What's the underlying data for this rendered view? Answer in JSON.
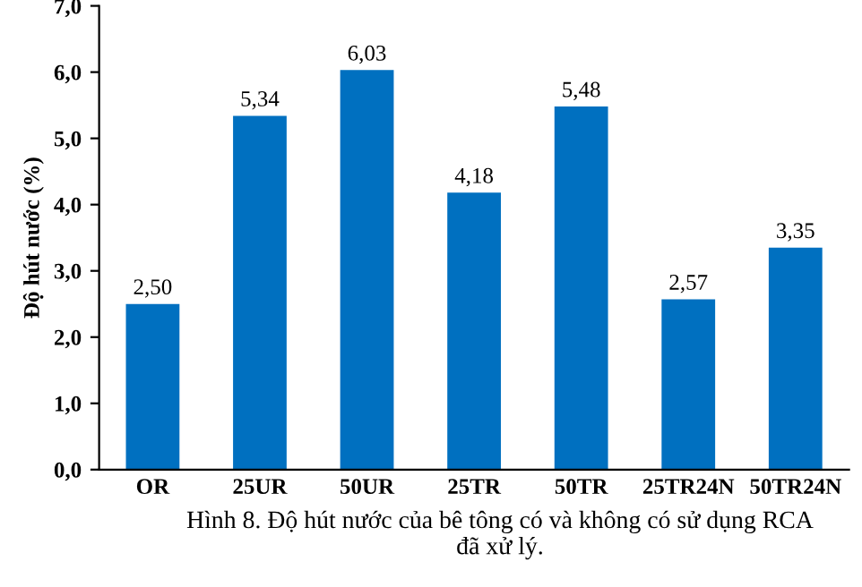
{
  "chart_data": {
    "type": "bar",
    "ylabel": "Độ hút nước (%)",
    "categories": [
      "OR",
      "25UR",
      "50UR",
      "25TR",
      "50TR",
      "25TR24N",
      "50TR24N"
    ],
    "values": [
      2.5,
      5.34,
      6.03,
      4.18,
      5.48,
      2.57,
      3.35
    ],
    "value_labels": [
      "2,50",
      "5,34",
      "6,03",
      "4,18",
      "5,48",
      "2,57",
      "3,35"
    ],
    "color": "#0070c0",
    "ylim": [
      0,
      7
    ],
    "yticks": [
      {
        "value": 0,
        "label": "0,0"
      },
      {
        "value": 1,
        "label": "1,0"
      },
      {
        "value": 2,
        "label": "2,0"
      },
      {
        "value": 3,
        "label": "3,0"
      },
      {
        "value": 4,
        "label": "4,0"
      },
      {
        "value": 5,
        "label": "5,0"
      },
      {
        "value": 6,
        "label": "6,0"
      },
      {
        "value": 7,
        "label": "7,0"
      }
    ],
    "grid": false,
    "annotations": [
      "Hình 8. Độ hút nước của bê tông có và không có sử dụng RCA\nđã xử lý."
    ]
  }
}
